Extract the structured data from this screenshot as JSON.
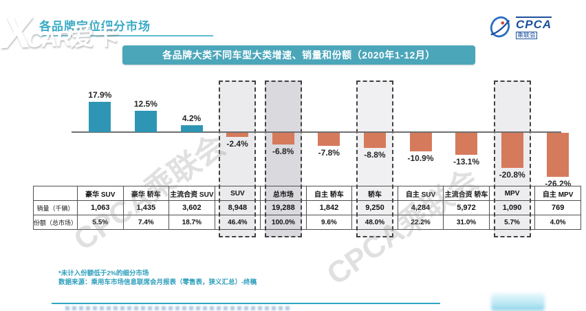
{
  "header": {
    "heading": "各品牌定位细分市场",
    "corner_watermark": {
      "x": "X",
      "car": "CAR",
      "aika": "爱卡"
    },
    "logo": {
      "acronym": "CPCA",
      "name_cn": "乘联会"
    }
  },
  "banner": {
    "title": "各品牌大类不同车型大类增速、销量和份额（2020年1-12月）",
    "bg": "#4BA6BA"
  },
  "chart_data": {
    "type": "bar",
    "title": "各品牌大类不同车型大类增速、销量和份额（2020年1-12月）",
    "categories": [
      "豪华 SUV",
      "豪华 轿车",
      "主流合资 SUV",
      "SUV",
      "总市场",
      "自主 轿车",
      "轿车",
      "自主 SUV",
      "主流合资 轿车",
      "MPV",
      "自主 MPV"
    ],
    "series": [
      {
        "name": "增速",
        "unit": "%",
        "values": [
          17.9,
          12.5,
          4.2,
          -2.4,
          -6.8,
          -7.8,
          -8.8,
          -10.9,
          -13.1,
          -20.8,
          -26.2
        ]
      },
      {
        "name": "销量（千辆）",
        "values": [
          "1,063",
          "1,435",
          "3,602",
          "8,948",
          "19,288",
          "1,842",
          "9,250",
          "4,284",
          "5,972",
          "1,090",
          "769"
        ]
      },
      {
        "name": "份额（总市场）",
        "values": [
          "5.5%",
          "7.4%",
          "18.7%",
          "46.4%",
          "100.0%",
          "9.6%",
          "48.0%",
          "22.2%",
          "31.0%",
          "5.7%",
          "4.0%"
        ]
      }
    ],
    "ylim": [
      -30,
      22
    ],
    "zero_line": true,
    "legend": "none",
    "positive_color": "#2E96B4",
    "negative_color": "#D67A5C",
    "label_color": "#262626",
    "highlights": [
      {
        "index": 3,
        "category": "SUV",
        "fill": "#EBEBEE"
      },
      {
        "index": 4,
        "category": "总市场",
        "fill": "#D9D9DE"
      },
      {
        "index": 6,
        "category": "轿车",
        "fill": "#F0F0F2"
      },
      {
        "index": 9,
        "category": "MPV",
        "fill": "#EDEDF0"
      }
    ]
  },
  "table": {
    "corner_label": "",
    "row_labels": [
      "销量（千辆）",
      "份额（总市场）"
    ]
  },
  "footnotes": [
    "*未计入份额低于2%的细分市场",
    "数据来源：乘用车市场信息联席会月报表（零售表，狭义汇总）-终稿"
  ],
  "watermark_diagonal": "CPCA乘联会"
}
